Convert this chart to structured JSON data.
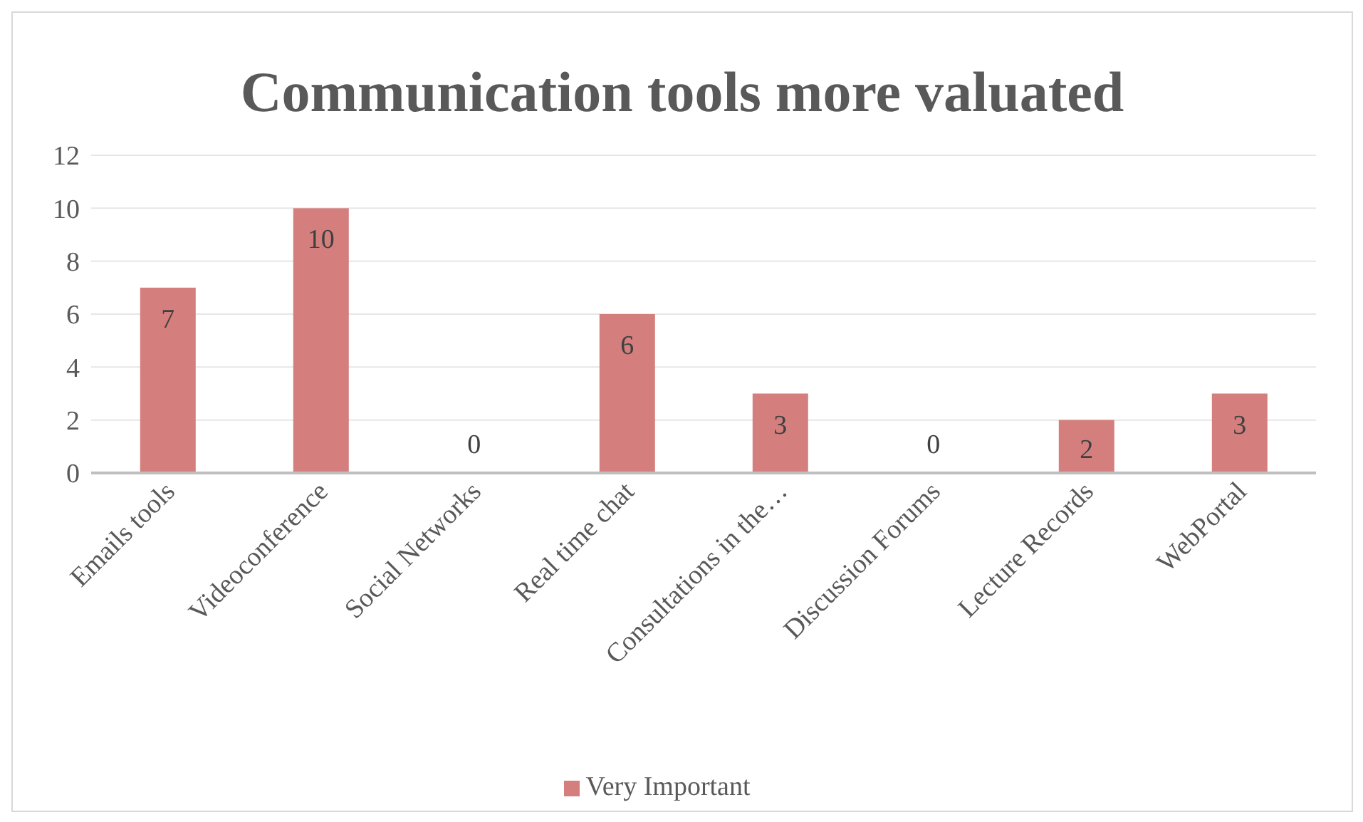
{
  "chart_data": {
    "type": "bar",
    "title": "Communication tools more valuated",
    "categories": [
      "Emails tools",
      "Videoconference",
      "Social Networks",
      "Real time chat",
      "Consultations in the…",
      "Discussion Forums",
      "Lecture Records",
      "WebPortal"
    ],
    "series": [
      {
        "name": "Very Important",
        "color": "#d47f7d",
        "values": [
          7,
          10,
          0,
          6,
          3,
          0,
          2,
          3
        ]
      }
    ],
    "ylim": [
      0,
      12
    ],
    "yticks": [
      0,
      2,
      4,
      6,
      8,
      10,
      12
    ],
    "grid": "y",
    "legend": "bottom",
    "data_labels": true
  }
}
